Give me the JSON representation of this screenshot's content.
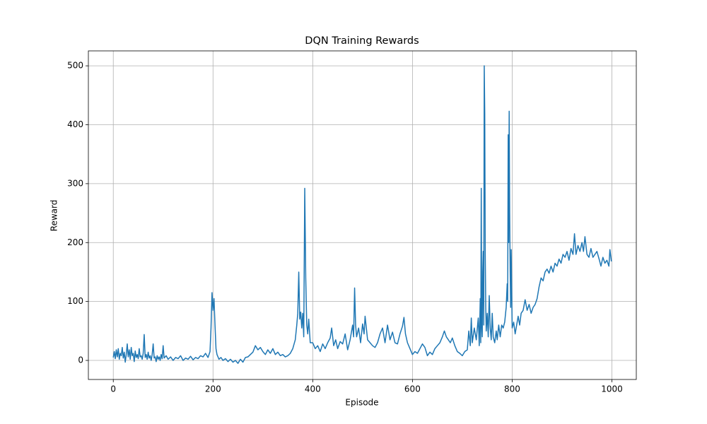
{
  "chart_data": {
    "type": "line",
    "title": "DQN Training Rewards",
    "x_label": "Episode",
    "y_label": "Reward",
    "xlim": [
      -49.95,
      1048.95
    ],
    "ylim": [
      -32.35,
      525.35
    ],
    "xticks": [
      0,
      200,
      400,
      600,
      800,
      1000
    ],
    "yticks": [
      0,
      100,
      200,
      300,
      400,
      500
    ],
    "grid": true,
    "x": [
      0,
      2,
      4,
      6,
      8,
      10,
      12,
      14,
      16,
      18,
      20,
      22,
      24,
      26,
      28,
      30,
      32,
      34,
      36,
      38,
      40,
      42,
      44,
      46,
      48,
      50,
      52,
      54,
      56,
      58,
      60,
      62,
      64,
      66,
      68,
      70,
      72,
      74,
      76,
      78,
      80,
      82,
      84,
      86,
      88,
      90,
      92,
      94,
      96,
      98,
      100,
      102,
      106,
      110,
      115,
      120,
      125,
      130,
      135,
      140,
      145,
      150,
      155,
      160,
      165,
      170,
      175,
      180,
      185,
      190,
      194,
      196,
      198,
      200,
      202,
      204,
      206,
      208,
      212,
      216,
      220,
      225,
      230,
      235,
      240,
      245,
      250,
      255,
      260,
      265,
      270,
      275,
      280,
      285,
      290,
      295,
      300,
      305,
      310,
      315,
      320,
      325,
      330,
      335,
      340,
      345,
      350,
      355,
      360,
      365,
      368,
      370,
      372,
      374,
      376,
      378,
      380,
      382,
      384,
      386,
      388,
      390,
      392,
      395,
      400,
      405,
      410,
      415,
      420,
      425,
      430,
      435,
      438,
      442,
      446,
      450,
      455,
      460,
      465,
      470,
      475,
      478,
      480,
      482,
      484,
      486,
      488,
      492,
      496,
      500,
      503,
      505,
      510,
      515,
      520,
      525,
      530,
      535,
      540,
      545,
      550,
      555,
      560,
      565,
      570,
      575,
      580,
      583,
      586,
      590,
      595,
      600,
      605,
      610,
      615,
      620,
      625,
      630,
      635,
      640,
      645,
      650,
      655,
      660,
      664,
      668,
      672,
      676,
      680,
      685,
      690,
      695,
      700,
      705,
      710,
      713,
      716,
      718,
      720,
      724,
      728,
      732,
      734,
      736,
      737,
      738,
      739,
      740,
      741,
      742,
      743,
      744,
      745,
      746,
      747,
      748,
      750,
      752,
      754,
      756,
      758,
      760,
      762,
      765,
      768,
      770,
      773,
      776,
      779,
      782,
      785,
      788,
      790,
      791,
      792,
      793,
      794,
      795,
      796,
      797,
      798,
      799,
      800,
      803,
      806,
      809,
      812,
      815,
      818,
      822,
      826,
      830,
      834,
      838,
      842,
      846,
      850,
      854,
      858,
      862,
      866,
      870,
      874,
      878,
      882,
      886,
      890,
      894,
      898,
      902,
      906,
      910,
      914,
      918,
      922,
      925,
      928,
      932,
      936,
      940,
      943,
      946,
      950,
      954,
      958,
      962,
      966,
      970,
      975,
      978,
      982,
      986,
      990,
      994,
      996,
      998,
      999
    ],
    "series": [
      {
        "color": "#1f77b4",
        "values": [
          5,
          15,
          3,
          18,
          6,
          20,
          2,
          12,
          8,
          22,
          4,
          14,
          -3,
          10,
          28,
          6,
          18,
          2,
          22,
          8,
          12,
          -2,
          16,
          5,
          10,
          3,
          20,
          6,
          8,
          2,
          12,
          44,
          5,
          10,
          2,
          14,
          4,
          8,
          0,
          10,
          28,
          4,
          6,
          -2,
          8,
          2,
          6,
          0,
          10,
          3,
          25,
          4,
          8,
          2,
          6,
          0,
          5,
          3,
          8,
          0,
          4,
          2,
          7,
          1,
          5,
          3,
          8,
          6,
          12,
          5,
          15,
          55,
          115,
          85,
          105,
          60,
          20,
          10,
          2,
          5,
          0,
          3,
          -2,
          2,
          -3,
          0,
          -5,
          2,
          -3,
          5,
          6,
          10,
          14,
          25,
          18,
          22,
          15,
          10,
          18,
          12,
          20,
          10,
          14,
          8,
          10,
          6,
          8,
          12,
          20,
          35,
          60,
          80,
          150,
          70,
          82,
          55,
          80,
          40,
          292,
          140,
          60,
          45,
          70,
          30,
          30,
          20,
          25,
          15,
          28,
          20,
          30,
          38,
          55,
          25,
          35,
          20,
          32,
          28,
          45,
          18,
          35,
          50,
          60,
          40,
          123,
          60,
          40,
          55,
          30,
          62,
          45,
          75,
          35,
          30,
          25,
          22,
          30,
          45,
          55,
          30,
          60,
          35,
          48,
          30,
          28,
          45,
          58,
          73,
          45,
          30,
          20,
          10,
          15,
          12,
          20,
          28,
          22,
          8,
          14,
          10,
          20,
          25,
          30,
          40,
          50,
          40,
          35,
          30,
          38,
          25,
          15,
          12,
          8,
          15,
          18,
          50,
          25,
          72,
          30,
          55,
          35,
          72,
          25,
          105,
          30,
          292,
          60,
          40,
          150,
          185,
          60,
          500,
          420,
          180,
          90,
          50,
          80,
          40,
          110,
          55,
          35,
          80,
          40,
          30,
          50,
          35,
          60,
          40,
          60,
          55,
          65,
          90,
          130,
          100,
          383,
          200,
          423,
          250,
          150,
          90,
          188,
          120,
          55,
          65,
          45,
          60,
          75,
          60,
          80,
          85,
          103,
          85,
          95,
          80,
          90,
          95,
          105,
          125,
          140,
          135,
          150,
          155,
          148,
          160,
          150,
          165,
          160,
          172,
          165,
          180,
          175,
          185,
          170,
          190,
          180,
          215,
          180,
          195,
          185,
          200,
          185,
          210,
          180,
          175,
          190,
          175,
          180,
          185,
          170,
          160,
          175,
          165,
          170,
          160,
          188,
          175,
          168
        ]
      }
    ]
  }
}
